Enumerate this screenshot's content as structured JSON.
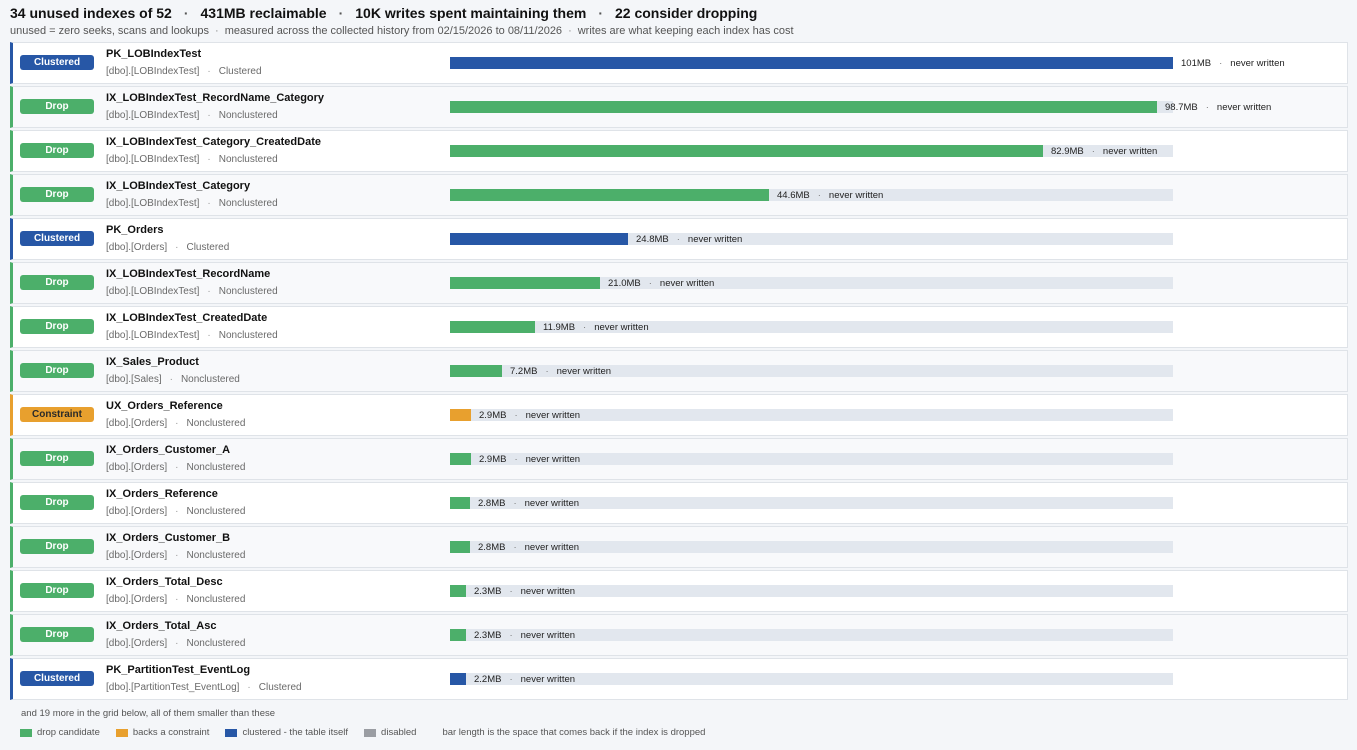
{
  "summary": {
    "unused": "34 unused indexes of 52",
    "reclaimable": "431MB reclaimable",
    "writes": "10K writes spent maintaining them",
    "consider": "22 consider dropping"
  },
  "subline": {
    "definition": "unused = zero seeks, scans and lookups",
    "range": "measured across the collected history from 02/15/2026 to 08/11/2026",
    "writes_note": "writes are what keeping each index has cost"
  },
  "colors": {
    "drop": "#4caf6a",
    "constraint": "#e8a02e",
    "clustered": "#2757a6",
    "disabled": "#9a9da3",
    "track": "#e2e7ee"
  },
  "max_size_mb": 101,
  "rows": [
    {
      "kind": "clustered",
      "badge": "Clustered",
      "name": "PK_LOBIndexTest",
      "table": "[dbo].[LOBIndexTest]",
      "type": "Clustered",
      "size_mb": 101,
      "size": "101MB",
      "writes": "never written"
    },
    {
      "kind": "drop",
      "badge": "Drop",
      "name": "IX_LOBIndexTest_RecordName_Category",
      "table": "[dbo].[LOBIndexTest]",
      "type": "Nonclustered",
      "size_mb": 98.7,
      "size": "98.7MB",
      "writes": "never written"
    },
    {
      "kind": "drop",
      "badge": "Drop",
      "name": "IX_LOBIndexTest_Category_CreatedDate",
      "table": "[dbo].[LOBIndexTest]",
      "type": "Nonclustered",
      "size_mb": 82.9,
      "size": "82.9MB",
      "writes": "never written"
    },
    {
      "kind": "drop",
      "badge": "Drop",
      "name": "IX_LOBIndexTest_Category",
      "table": "[dbo].[LOBIndexTest]",
      "type": "Nonclustered",
      "size_mb": 44.6,
      "size": "44.6MB",
      "writes": "never written"
    },
    {
      "kind": "clustered",
      "badge": "Clustered",
      "name": "PK_Orders",
      "table": "[dbo].[Orders]",
      "type": "Clustered",
      "size_mb": 24.8,
      "size": "24.8MB",
      "writes": "never written"
    },
    {
      "kind": "drop",
      "badge": "Drop",
      "name": "IX_LOBIndexTest_RecordName",
      "table": "[dbo].[LOBIndexTest]",
      "type": "Nonclustered",
      "size_mb": 21.0,
      "size": "21.0MB",
      "writes": "never written"
    },
    {
      "kind": "drop",
      "badge": "Drop",
      "name": "IX_LOBIndexTest_CreatedDate",
      "table": "[dbo].[LOBIndexTest]",
      "type": "Nonclustered",
      "size_mb": 11.9,
      "size": "11.9MB",
      "writes": "never written"
    },
    {
      "kind": "drop",
      "badge": "Drop",
      "name": "IX_Sales_Product",
      "table": "[dbo].[Sales]",
      "type": "Nonclustered",
      "size_mb": 7.2,
      "size": "7.2MB",
      "writes": "never written"
    },
    {
      "kind": "constraint",
      "badge": "Constraint",
      "name": "UX_Orders_Reference",
      "table": "[dbo].[Orders]",
      "type": "Nonclustered",
      "size_mb": 2.9,
      "size": "2.9MB",
      "writes": "never written"
    },
    {
      "kind": "drop",
      "badge": "Drop",
      "name": "IX_Orders_Customer_A",
      "table": "[dbo].[Orders]",
      "type": "Nonclustered",
      "size_mb": 2.9,
      "size": "2.9MB",
      "writes": "never written"
    },
    {
      "kind": "drop",
      "badge": "Drop",
      "name": "IX_Orders_Reference",
      "table": "[dbo].[Orders]",
      "type": "Nonclustered",
      "size_mb": 2.8,
      "size": "2.8MB",
      "writes": "never written"
    },
    {
      "kind": "drop",
      "badge": "Drop",
      "name": "IX_Orders_Customer_B",
      "table": "[dbo].[Orders]",
      "type": "Nonclustered",
      "size_mb": 2.8,
      "size": "2.8MB",
      "writes": "never written"
    },
    {
      "kind": "drop",
      "badge": "Drop",
      "name": "IX_Orders_Total_Desc",
      "table": "[dbo].[Orders]",
      "type": "Nonclustered",
      "size_mb": 2.3,
      "size": "2.3MB",
      "writes": "never written"
    },
    {
      "kind": "drop",
      "badge": "Drop",
      "name": "IX_Orders_Total_Asc",
      "table": "[dbo].[Orders]",
      "type": "Nonclustered",
      "size_mb": 2.3,
      "size": "2.3MB",
      "writes": "never written"
    },
    {
      "kind": "clustered",
      "badge": "Clustered",
      "name": "PK_PartitionTest_EventLog",
      "table": "[dbo].[PartitionTest_EventLog]",
      "type": "Clustered",
      "size_mb": 2.2,
      "size": "2.2MB",
      "writes": "never written"
    }
  ],
  "more_note": "and 19 more in the grid below, all of them smaller than these",
  "legend": {
    "drop": "drop candidate",
    "constraint": "backs a constraint",
    "clustered": "clustered - the table itself",
    "disabled": "disabled",
    "note": "bar length is the space that comes back if the index is dropped"
  }
}
